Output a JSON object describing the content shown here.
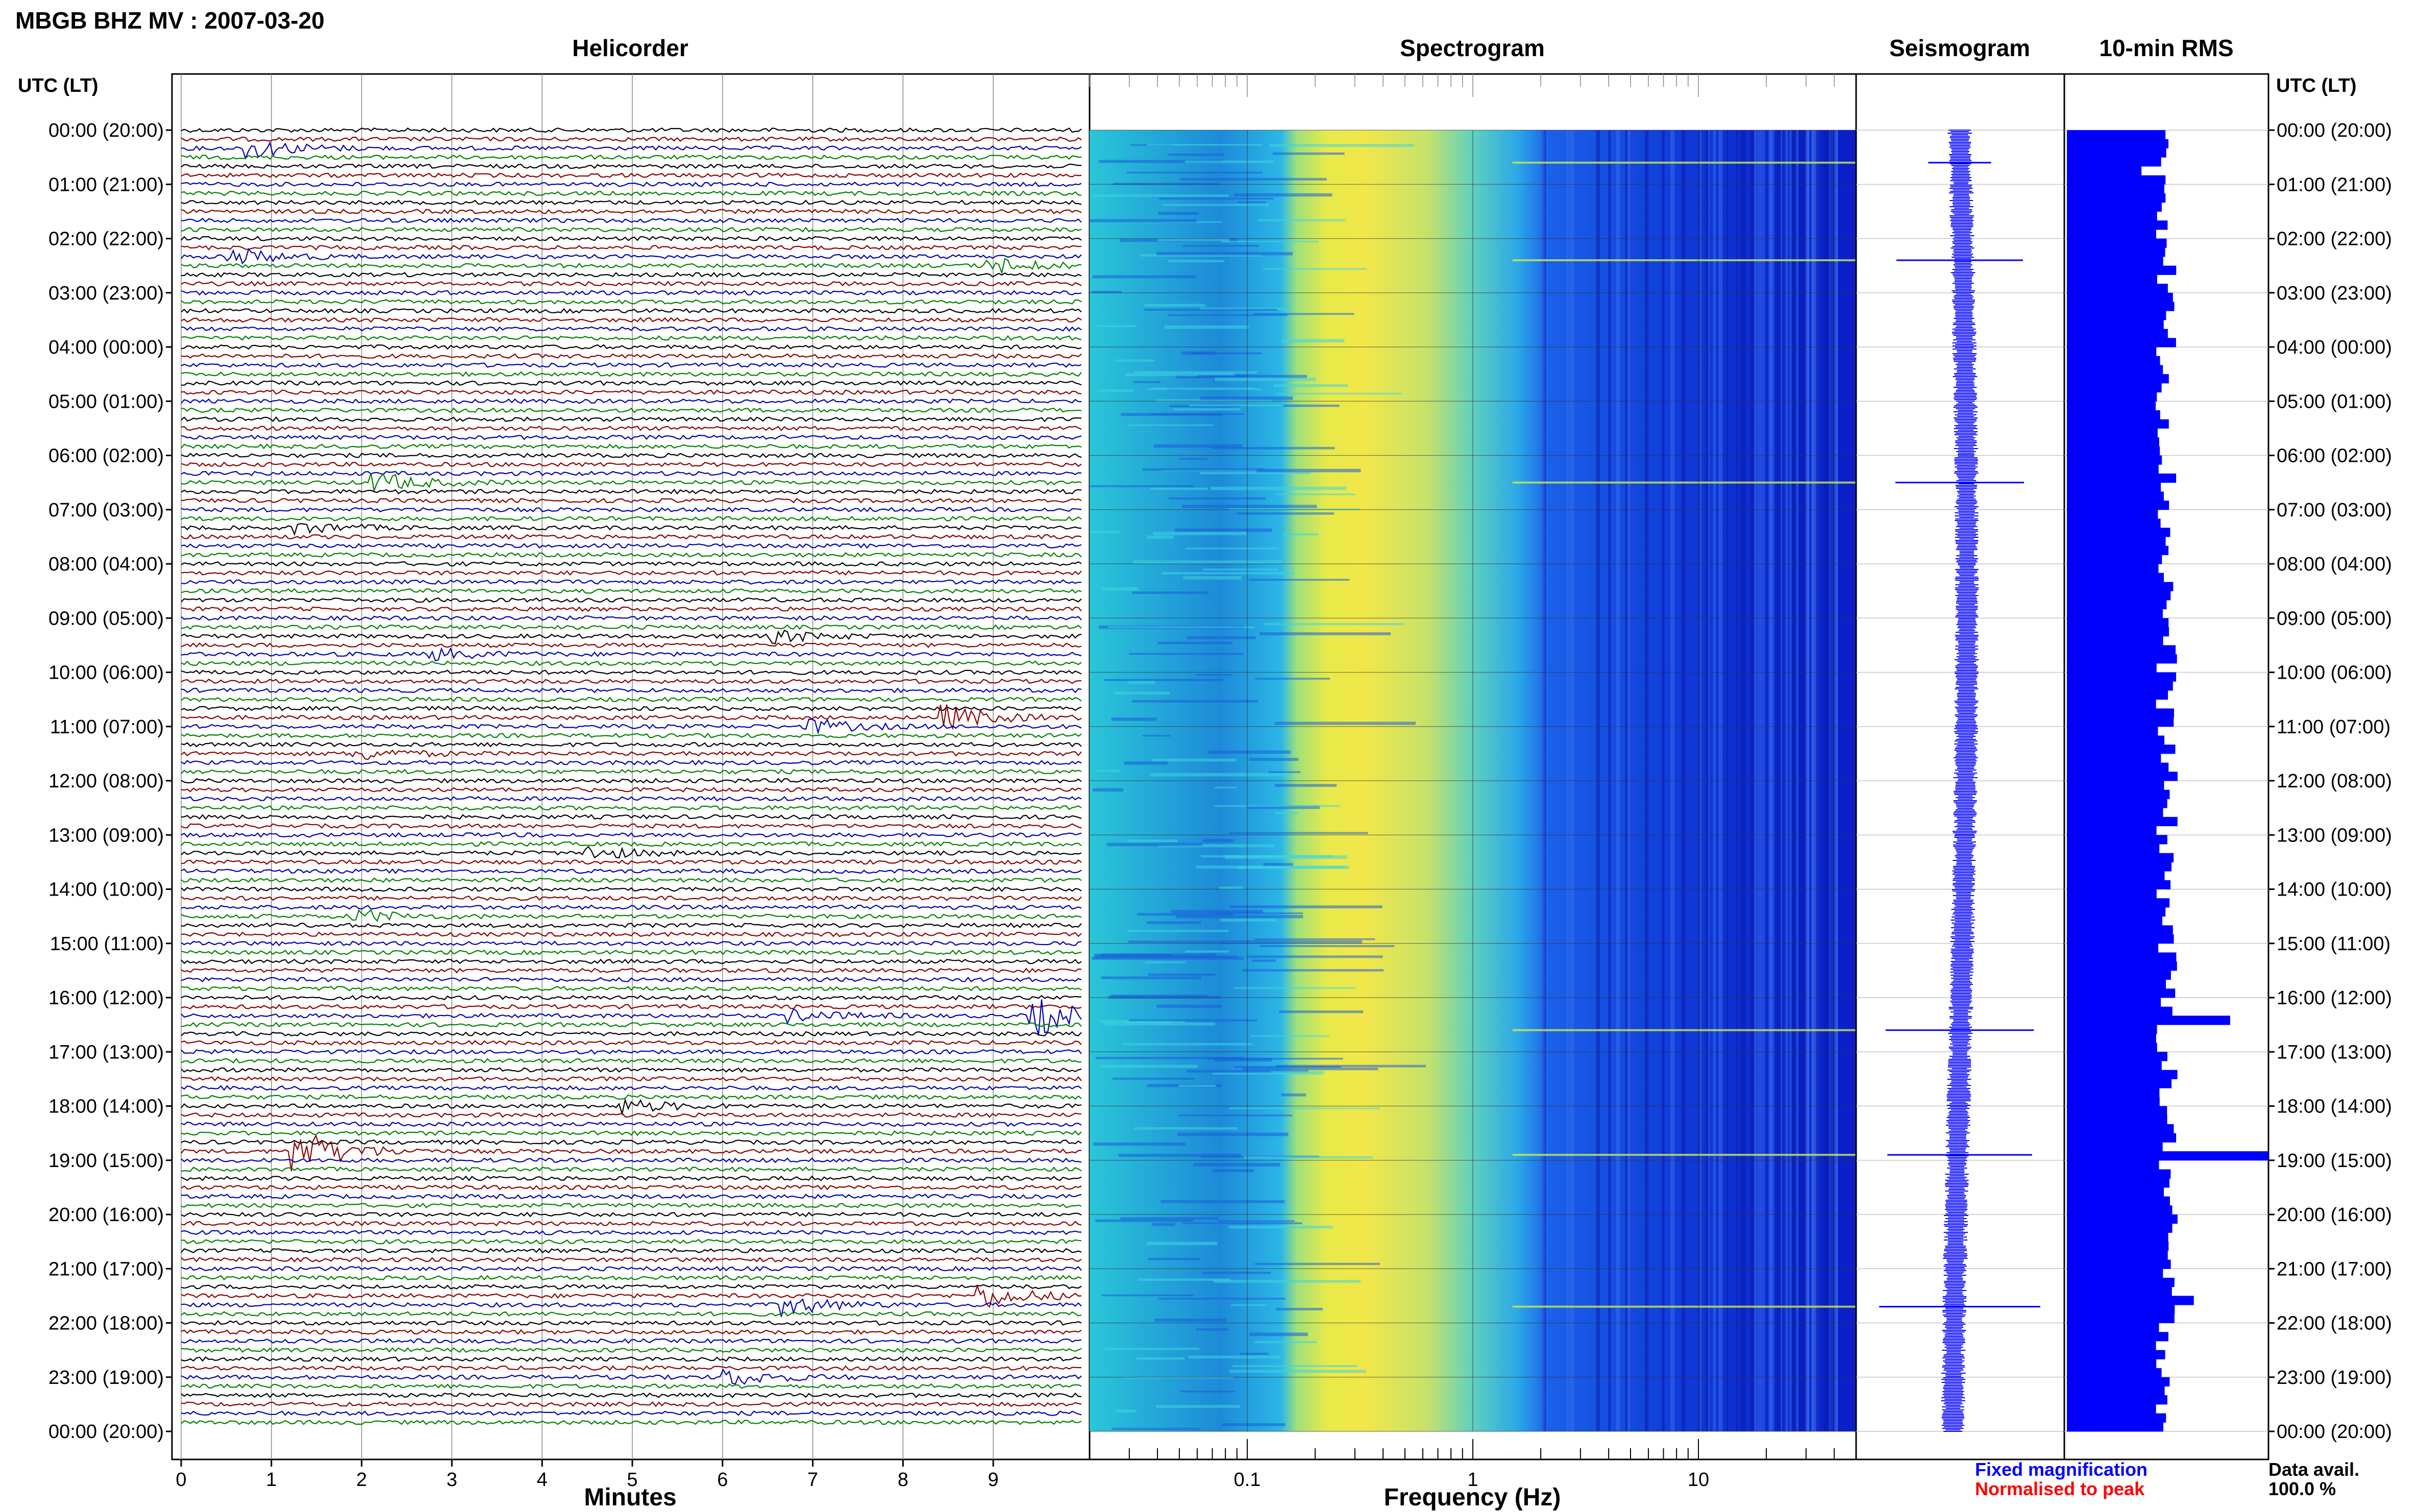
{
  "header": {
    "title": "MBGB BHZ MV : 2007-03-20",
    "time_axis_label": "UTC (LT)"
  },
  "panels": {
    "helicorder": "Helicorder",
    "spectrogram": "Spectrogram",
    "seismogram": "Seismogram",
    "rms": "10-min RMS"
  },
  "legend": {
    "fixed": "Fixed magnification",
    "normalised": "Normalised to peak",
    "fixed_color": "#0000ff",
    "normalised_color": "#ff0000"
  },
  "availability": {
    "label": "Data avail.",
    "value": "100.0 %"
  },
  "chart_data": {
    "type": "heatmap",
    "trace_colors": [
      "#000000",
      "#8b0000",
      "#0000b0",
      "#008000"
    ],
    "time_labels": [
      "00:00 (20:00)",
      "01:00 (21:00)",
      "02:00 (22:00)",
      "03:00 (23:00)",
      "04:00 (00:00)",
      "05:00 (01:00)",
      "06:00 (02:00)",
      "07:00 (03:00)",
      "08:00 (04:00)",
      "09:00 (05:00)",
      "10:00 (06:00)",
      "11:00 (07:00)",
      "12:00 (08:00)",
      "13:00 (09:00)",
      "14:00 (10:00)",
      "15:00 (11:00)",
      "16:00 (12:00)",
      "17:00 (13:00)",
      "18:00 (14:00)",
      "19:00 (15:00)",
      "20:00 (16:00)",
      "21:00 (17:00)",
      "22:00 (18:00)",
      "23:00 (19:00)",
      "00:00 (20:00)"
    ],
    "helicorder": {
      "xlabel": "Minutes",
      "x_ticks": [
        0,
        1,
        2,
        3,
        4,
        5,
        6,
        7,
        8,
        9
      ],
      "xlim": [
        0,
        10
      ],
      "lines_per_hour": 6,
      "events": [
        {
          "hour": 0.33,
          "minute": 0.8,
          "amp": 0.8
        },
        {
          "hour": 2.33,
          "minute": 0.6,
          "amp": 0.7
        },
        {
          "hour": 2.5,
          "minute": 9.0,
          "amp": 0.7
        },
        {
          "hour": 6.5,
          "minute": 2.2,
          "amp": 0.8
        },
        {
          "hour": 7.33,
          "minute": 1.3,
          "amp": 0.5
        },
        {
          "hour": 9.33,
          "minute": 6.6,
          "amp": 0.5
        },
        {
          "hour": 9.67,
          "minute": 2.8,
          "amp": 0.5
        },
        {
          "hour": 10.83,
          "minute": 8.5,
          "amp": 1.0
        },
        {
          "hour": 11.0,
          "minute": 7.0,
          "amp": 0.6
        },
        {
          "hour": 11.5,
          "minute": 2.0,
          "amp": 0.5
        },
        {
          "hour": 13.33,
          "minute": 4.5,
          "amp": 0.6
        },
        {
          "hour": 14.5,
          "minute": 2.0,
          "amp": 0.5
        },
        {
          "hour": 16.33,
          "minute": 9.5,
          "amp": 1.6
        },
        {
          "hour": 16.33,
          "minute": 6.8,
          "amp": 0.5
        },
        {
          "hour": 18.0,
          "minute": 4.9,
          "amp": 0.6
        },
        {
          "hour": 18.83,
          "minute": 1.3,
          "amp": 2.0
        },
        {
          "hour": 21.5,
          "minute": 8.9,
          "amp": 1.0
        },
        {
          "hour": 21.67,
          "minute": 6.7,
          "amp": 0.9
        },
        {
          "hour": 23.0,
          "minute": 6.1,
          "amp": 0.7
        }
      ]
    },
    "spectrogram": {
      "xlabel": "Frequency (Hz)",
      "scale": "log",
      "xlim": [
        0.02,
        50
      ],
      "x_ticks": [
        0.1,
        1,
        10
      ],
      "x_tick_labels": [
        "0.1",
        "1",
        "10"
      ],
      "peak_band_hz": [
        0.2,
        0.8
      ]
    },
    "seismogram": {
      "spikes_hour": [
        0.6,
        2.4,
        6.5,
        16.6,
        18.9,
        21.7
      ]
    },
    "rms": {
      "interval_minutes": 10,
      "peaks": [
        {
          "hour": 0.67,
          "relative": 0.37
        },
        {
          "hour": 16.33,
          "relative": 0.81
        },
        {
          "hour": 18.83,
          "relative": 1.0
        },
        {
          "hour": 21.5,
          "relative": 0.63
        }
      ],
      "baseline_relative": 0.5
    }
  }
}
